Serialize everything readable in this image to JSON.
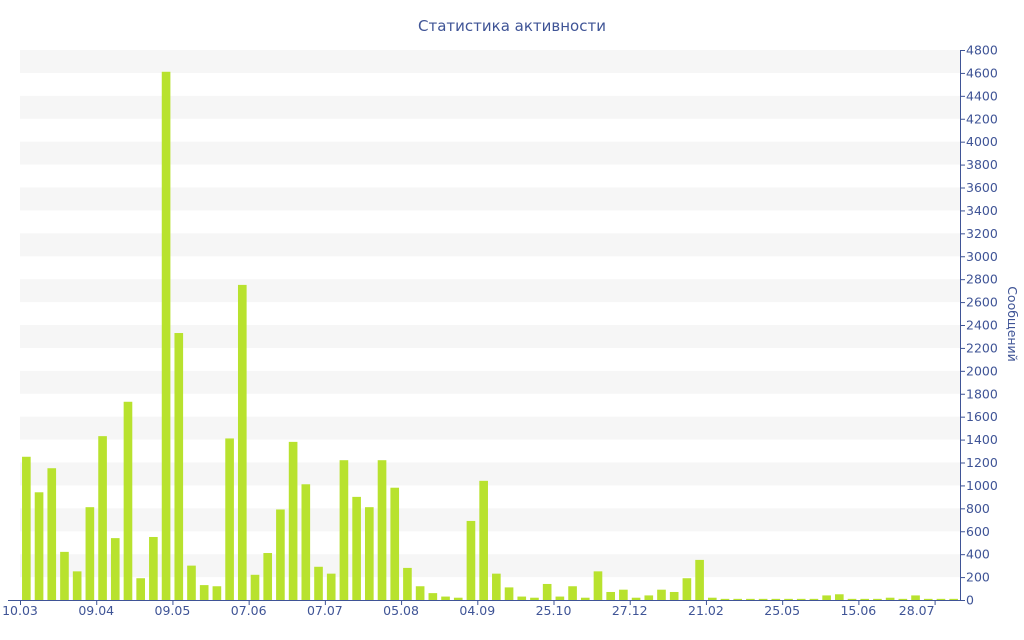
{
  "chart_data": {
    "type": "bar",
    "title": "Статистика активности",
    "xlabel": "",
    "ylabel": "Сообщений",
    "ylim": [
      0,
      4800
    ],
    "y_ticks": [
      0,
      200,
      400,
      600,
      800,
      1000,
      1200,
      1400,
      1600,
      1800,
      2000,
      2200,
      2400,
      2600,
      2800,
      3000,
      3200,
      3400,
      3600,
      3800,
      4000,
      4200,
      4400,
      4600,
      4800
    ],
    "y_axis_side": "right",
    "grid": "horizontal alternating bands",
    "bar_color": "#b8e22e",
    "axis_color": "#3f5496",
    "x_tick_labels": [
      {
        "label": "10.03",
        "index": 0
      },
      {
        "label": "09.04",
        "index": 6
      },
      {
        "label": "09.05",
        "index": 12
      },
      {
        "label": "07.06",
        "index": 18
      },
      {
        "label": "07.07",
        "index": 24
      },
      {
        "label": "05.08",
        "index": 30
      },
      {
        "label": "04.09",
        "index": 36
      },
      {
        "label": "25.10",
        "index": 42
      },
      {
        "label": "27.12",
        "index": 48
      },
      {
        "label": "21.02",
        "index": 54
      },
      {
        "label": "25.05",
        "index": 60
      },
      {
        "label": "15.06",
        "index": 66
      },
      {
        "label": "28.07",
        "index": 72
      }
    ],
    "values": [
      1250,
      940,
      1150,
      420,
      250,
      810,
      1430,
      540,
      1730,
      190,
      550,
      4610,
      2330,
      300,
      130,
      120,
      1410,
      2750,
      220,
      410,
      790,
      1380,
      1010,
      290,
      230,
      1220,
      900,
      810,
      1220,
      980,
      280,
      120,
      60,
      30,
      20,
      690,
      1040,
      230,
      110,
      30,
      20,
      140,
      30,
      120,
      20,
      250,
      70,
      90,
      20,
      40,
      90,
      70,
      190,
      350,
      20,
      10,
      10,
      10,
      10,
      10,
      10,
      10,
      10,
      40,
      50,
      10,
      10,
      10,
      20,
      10,
      40,
      10,
      10,
      10
    ]
  }
}
